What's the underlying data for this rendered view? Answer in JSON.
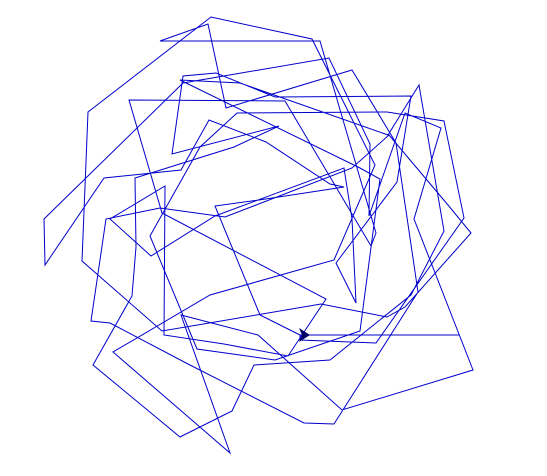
{
  "drawing": {
    "stroke_color": "#0000cc",
    "turtle_color": "#000066",
    "turtle_icon": "turtle-arrow-icon"
  }
}
